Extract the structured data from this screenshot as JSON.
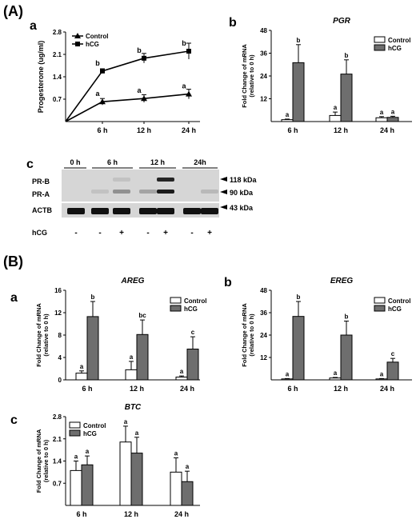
{
  "section_labels": {
    "A": "(A)",
    "B": "(B)"
  },
  "panel_letters": {
    "Aa": "a",
    "Ab": "b",
    "Ac": "c",
    "Ba": "a",
    "Bb": "b",
    "Bc": "c"
  },
  "colors": {
    "control": "#ffffff",
    "hcg": "#6e6e6e",
    "axis": "#000000",
    "blot_bg": "#d6d6d6"
  },
  "chart_data": [
    {
      "id": "Aa",
      "type": "line",
      "title": "",
      "xlabel": "",
      "ylabel": "Progesterone (ug/ml)",
      "categories": [
        "",
        "6 h",
        "12 h",
        "24 h"
      ],
      "ylim": [
        0,
        2.8
      ],
      "yticks": [
        "0.7",
        "1.4",
        "2.1",
        "2.8"
      ],
      "legend_placement": "top-left",
      "series": [
        {
          "name": "Control",
          "marker": "triangle",
          "values": [
            0,
            0.62,
            0.72,
            0.86
          ],
          "errors": [
            0,
            0.1,
            0.12,
            0.15
          ],
          "letters": [
            "",
            "a",
            "a",
            "a"
          ]
        },
        {
          "name": "hCG",
          "marker": "square",
          "values": [
            0,
            1.58,
            1.98,
            2.2
          ],
          "errors": [
            0,
            0.07,
            0.15,
            0.25
          ],
          "letters": [
            "",
            "b",
            "b",
            "b"
          ]
        }
      ]
    },
    {
      "id": "Ab",
      "type": "bar",
      "title": "PGR",
      "ylabel": "Fold Change of mRNA",
      "ylabel2": "(relative to 0 h)",
      "categories": [
        "6 h",
        "12 h",
        "24 h"
      ],
      "ylim": [
        0,
        48
      ],
      "yticks": [
        "12",
        "24",
        "36",
        "48"
      ],
      "legend_placement": "top-right",
      "series": [
        {
          "name": "Control",
          "values": [
            1.0,
            3.2,
            2.0
          ],
          "errors": [
            0.3,
            1.8,
            0.6
          ],
          "letters": [
            "a",
            "a",
            "a"
          ]
        },
        {
          "name": "hCG",
          "values": [
            31,
            25,
            2.2
          ],
          "errors": [
            9.5,
            7.5,
            0.6
          ],
          "letters": [
            "b",
            "b",
            "a"
          ]
        }
      ]
    },
    {
      "id": "Ba",
      "type": "bar",
      "title": "AREG",
      "ylabel": "Fold Change of mRNA",
      "ylabel2": "(relative to 0 h)",
      "categories": [
        "6 h",
        "12 h",
        "24 h"
      ],
      "ylim": [
        0,
        16
      ],
      "yticks": [
        "0",
        "4",
        "8",
        "12",
        "16"
      ],
      "legend_placement": "top-right",
      "series": [
        {
          "name": "Control",
          "values": [
            1.2,
            1.8,
            0.5
          ],
          "errors": [
            0.4,
            1.5,
            0.2
          ],
          "letters": [
            "a",
            "a",
            "a"
          ]
        },
        {
          "name": "hCG",
          "values": [
            11.3,
            8.1,
            5.5
          ],
          "errors": [
            2.7,
            2.6,
            2.2
          ],
          "letters": [
            "b",
            "bc",
            "c"
          ]
        }
      ]
    },
    {
      "id": "Bb",
      "type": "bar",
      "title": "EREG",
      "ylabel": "Fold Change of mRNA",
      "ylabel2": "(relative to 0 h)",
      "categories": [
        "6 h",
        "12 h",
        "24 h"
      ],
      "ylim": [
        0,
        48
      ],
      "yticks": [
        "12",
        "24",
        "36",
        "48"
      ],
      "legend_placement": "top-right",
      "series": [
        {
          "name": "Control",
          "values": [
            0.5,
            1.0,
            0.5
          ],
          "errors": [
            0.2,
            0.3,
            0.2
          ],
          "letters": [
            "a",
            "a",
            "a"
          ]
        },
        {
          "name": "hCG",
          "values": [
            34,
            24,
            9.5
          ],
          "errors": [
            8,
            7.5,
            2
          ],
          "letters": [
            "b",
            "b",
            "c"
          ]
        }
      ]
    },
    {
      "id": "Bc",
      "type": "bar",
      "title": "BTC",
      "ylabel": "Fold Change of mRNA",
      "ylabel2": "(relative to 0 h)",
      "categories": [
        "6 h",
        "12 h",
        "24 h"
      ],
      "ylim": [
        0,
        2.8
      ],
      "yticks": [
        "0.7",
        "1.4",
        "2.1",
        "2.8"
      ],
      "legend_placement": "top-left",
      "series": [
        {
          "name": "Control",
          "values": [
            1.1,
            2.0,
            1.05
          ],
          "errors": [
            0.3,
            0.5,
            0.45
          ],
          "letters": [
            "a",
            "a",
            "a"
          ]
        },
        {
          "name": "hCG",
          "values": [
            1.28,
            1.65,
            0.75
          ],
          "errors": [
            0.28,
            0.5,
            0.33
          ],
          "letters": [
            "a",
            "a",
            "a"
          ]
        }
      ]
    }
  ],
  "western_blot": {
    "timepoints": [
      "0 h",
      "6 h",
      "12 h",
      "24h"
    ],
    "row_labels": [
      "PR-B",
      "PR-A",
      "ACTB"
    ],
    "size_labels": [
      "118 kDa",
      "90 kDa",
      "43 kDa"
    ],
    "hcg_label": "hCG",
    "hcg_signs": [
      "-",
      "-",
      "+",
      "-",
      "+",
      "-",
      "+"
    ],
    "band_intensity": {
      "PR-B": [
        0,
        0,
        0.1,
        0,
        0.9,
        0,
        0
      ],
      "PR-A": [
        0,
        0.1,
        0.35,
        0.25,
        0.95,
        0,
        0.15
      ],
      "ACTB": [
        1,
        1,
        1,
        1,
        1,
        1,
        1
      ]
    }
  }
}
